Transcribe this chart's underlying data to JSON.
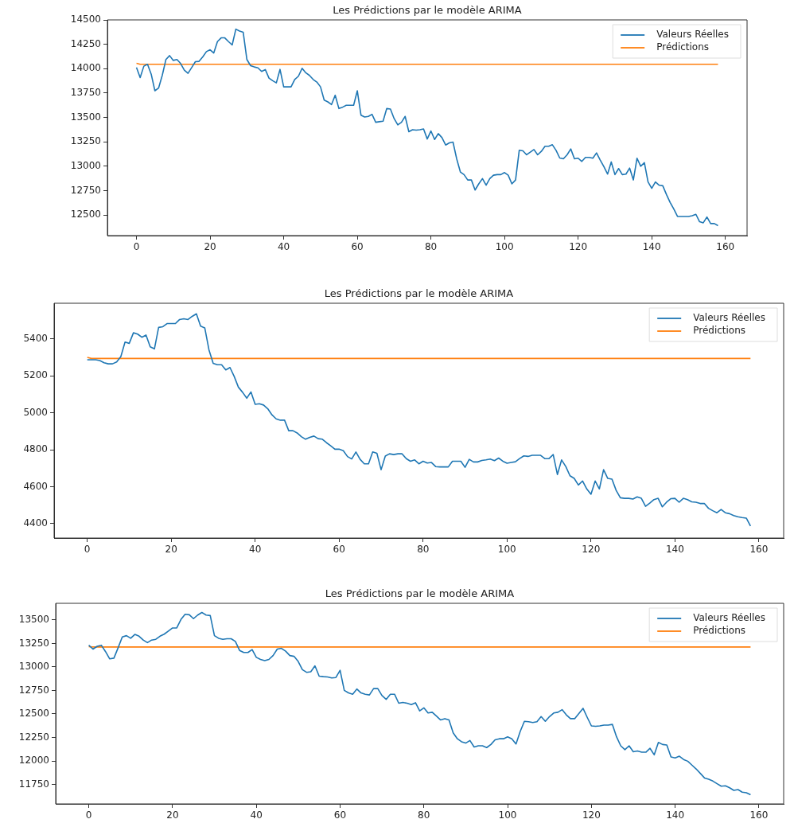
{
  "chart_data": [
    {
      "type": "line",
      "title": "Les Prédictions par le modèle ARIMA",
      "legend": "top right",
      "grid": false,
      "xlim": [
        -7.9,
        165.9
      ],
      "xticks": [
        0,
        20,
        40,
        60,
        80,
        100,
        120,
        140,
        160
      ],
      "ylim": [
        12290,
        14500
      ],
      "yticks": [
        12500,
        12750,
        13000,
        13250,
        13500,
        13750,
        14000,
        14250,
        14500
      ],
      "x": [
        0,
        1,
        2,
        3,
        4,
        5,
        6,
        7,
        8,
        9,
        10,
        11,
        12,
        13,
        14,
        15,
        16,
        17,
        18,
        19,
        20,
        21,
        22,
        23,
        24,
        25,
        26,
        27,
        28,
        29,
        30,
        31,
        32,
        33,
        34,
        35,
        36,
        37,
        38,
        39,
        40,
        41,
        42,
        43,
        44,
        45,
        46,
        47,
        48,
        49,
        50,
        51,
        52,
        53,
        54,
        55,
        56,
        57,
        58,
        59,
        60,
        61,
        62,
        63,
        64,
        65,
        66,
        67,
        68,
        69,
        70,
        71,
        72,
        73,
        74,
        75,
        76,
        77,
        78,
        79,
        80,
        81,
        82,
        83,
        84,
        85,
        86,
        87,
        88,
        89,
        90,
        91,
        92,
        93,
        94,
        95,
        96,
        97,
        98,
        99,
        100,
        101,
        102,
        103,
        104,
        105,
        106,
        107,
        108,
        109,
        110,
        111,
        112,
        113,
        114,
        115,
        116,
        117,
        118,
        119,
        120,
        121,
        122,
        123,
        124,
        125,
        126,
        127,
        128,
        129,
        130,
        131,
        132,
        133,
        134,
        135,
        136,
        137,
        138,
        139,
        140,
        141,
        142,
        143,
        144,
        145,
        146,
        147,
        148,
        149,
        150,
        151,
        152,
        153,
        154,
        155,
        156,
        157,
        158
      ],
      "series": [
        {
          "name": "Valeurs Réelles",
          "color": "#1f77b4",
          "values": [
            14012,
            13909,
            14026,
            14045,
            13944,
            13774,
            13801,
            13931,
            14094,
            14134,
            14085,
            14094,
            14053,
            13985,
            13953,
            14012,
            14072,
            14075,
            14121,
            14175,
            14194,
            14161,
            14278,
            14316,
            14316,
            14278,
            14243,
            14405,
            14386,
            14373,
            14094,
            14031,
            14018,
            14009,
            13972,
            13991,
            13904,
            13877,
            13855,
            13993,
            13814,
            13814,
            13814,
            13890,
            13923,
            14004,
            13958,
            13931,
            13890,
            13863,
            13814,
            13679,
            13660,
            13633,
            13728,
            13592,
            13606,
            13625,
            13625,
            13625,
            13774,
            13524,
            13505,
            13511,
            13533,
            13451,
            13457,
            13462,
            13592,
            13587,
            13489,
            13424,
            13451,
            13511,
            13354,
            13375,
            13370,
            13375,
            13383,
            13280,
            13362,
            13275,
            13335,
            13294,
            13218,
            13240,
            13248,
            13077,
            12942,
            12915,
            12860,
            12860,
            12757,
            12820,
            12874,
            12806,
            12874,
            12909,
            12915,
            12915,
            12936,
            12909,
            12820,
            12860,
            13164,
            13158,
            13118,
            13145,
            13172,
            13118,
            13153,
            13205,
            13205,
            13221,
            13164,
            13085,
            13077,
            13118,
            13178,
            13077,
            13083,
            13050,
            13091,
            13091,
            13083,
            13137,
            13064,
            12996,
            12920,
            13045,
            12915,
            12977,
            12915,
            12920,
            12982,
            12860,
            13083,
            13001,
            13037,
            12839,
            12774,
            12839,
            12806,
            12801,
            12711,
            12630,
            12562,
            12486,
            12486,
            12486,
            12486,
            12494,
            12508,
            12432,
            12421,
            12481,
            12413,
            12413,
            12392
          ]
        },
        {
          "name": "Prédictions",
          "color": "#ff7f0e",
          "x": [
            0,
            1,
            158
          ],
          "values": [
            14055,
            14045,
            14045
          ]
        }
      ]
    },
    {
      "type": "line",
      "title": "Les Prédictions par le modèle ARIMA",
      "legend": "top right",
      "grid": false,
      "xlim": [
        -7.9,
        165.9
      ],
      "xticks": [
        0,
        20,
        40,
        60,
        80,
        100,
        120,
        140,
        160
      ],
      "ylim": [
        4322,
        5593
      ],
      "yticks": [
        4400,
        4600,
        4800,
        5000,
        5200,
        5400
      ],
      "x": [
        0,
        1,
        2,
        3,
        4,
        5,
        6,
        7,
        8,
        9,
        10,
        11,
        12,
        13,
        14,
        15,
        16,
        17,
        18,
        19,
        20,
        21,
        22,
        23,
        24,
        25,
        26,
        27,
        28,
        29,
        30,
        31,
        32,
        33,
        34,
        35,
        36,
        37,
        38,
        39,
        40,
        41,
        42,
        43,
        44,
        45,
        46,
        47,
        48,
        49,
        50,
        51,
        52,
        53,
        54,
        55,
        56,
        57,
        58,
        59,
        60,
        61,
        62,
        63,
        64,
        65,
        66,
        67,
        68,
        69,
        70,
        71,
        72,
        73,
        74,
        75,
        76,
        77,
        78,
        79,
        80,
        81,
        82,
        83,
        84,
        85,
        86,
        87,
        88,
        89,
        90,
        91,
        92,
        93,
        94,
        95,
        96,
        97,
        98,
        99,
        100,
        101,
        102,
        103,
        104,
        105,
        106,
        107,
        108,
        109,
        110,
        111,
        112,
        113,
        114,
        115,
        116,
        117,
        118,
        119,
        120,
        121,
        122,
        123,
        124,
        125,
        126,
        127,
        128,
        129,
        130,
        131,
        132,
        133,
        134,
        135,
        136,
        137,
        138,
        139,
        140,
        141,
        142,
        143,
        144,
        145,
        146,
        147,
        148,
        149,
        150,
        151,
        152,
        153,
        154,
        155,
        156,
        157,
        158
      ],
      "series": [
        {
          "name": "Valeurs Réelles",
          "color": "#1f77b4",
          "values": [
            5287,
            5287,
            5287,
            5283,
            5271,
            5265,
            5265,
            5275,
            5304,
            5383,
            5376,
            5433,
            5426,
            5409,
            5421,
            5357,
            5346,
            5462,
            5466,
            5483,
            5483,
            5483,
            5505,
            5509,
            5505,
            5522,
            5536,
            5469,
            5459,
            5340,
            5268,
            5260,
            5260,
            5232,
            5245,
            5197,
            5139,
            5111,
            5079,
            5113,
            5046,
            5049,
            5042,
            5022,
            4989,
            4967,
            4960,
            4960,
            4903,
            4903,
            4891,
            4871,
            4857,
            4867,
            4874,
            4860,
            4857,
            4838,
            4821,
            4803,
            4803,
            4795,
            4763,
            4750,
            4788,
            4748,
            4724,
            4724,
            4788,
            4781,
            4692,
            4766,
            4778,
            4774,
            4778,
            4778,
            4752,
            4738,
            4745,
            4724,
            4738,
            4728,
            4731,
            4709,
            4707,
            4707,
            4707,
            4738,
            4738,
            4738,
            4705,
            4748,
            4734,
            4734,
            4742,
            4745,
            4750,
            4741,
            4755,
            4738,
            4727,
            4731,
            4735,
            4752,
            4767,
            4764,
            4770,
            4770,
            4770,
            4752,
            4752,
            4774,
            4666,
            4745,
            4709,
            4659,
            4645,
            4609,
            4631,
            4588,
            4559,
            4631,
            4588,
            4692,
            4645,
            4641,
            4580,
            4540,
            4537,
            4537,
            4533,
            4545,
            4537,
            4494,
            4511,
            4530,
            4537,
            4491,
            4516,
            4535,
            4537,
            4516,
            4537,
            4530,
            4518,
            4516,
            4509,
            4509,
            4483,
            4470,
            4459,
            4477,
            4459,
            4454,
            4444,
            4437,
            4433,
            4430,
            4387
          ]
        },
        {
          "name": "Prédictions",
          "color": "#ff7f0e",
          "x": [
            0,
            1,
            158
          ],
          "values": [
            5300,
            5294,
            5294
          ]
        }
      ]
    },
    {
      "type": "line",
      "title": "Les Prédictions par le modèle ARIMA",
      "legend": "top right",
      "grid": false,
      "xlim": [
        -7.9,
        165.9
      ],
      "xticks": [
        0,
        20,
        40,
        60,
        80,
        100,
        120,
        140,
        160
      ],
      "ylim": [
        11543,
        13677
      ],
      "yticks": [
        11750,
        12000,
        12250,
        12500,
        12750,
        13000,
        13250,
        13500
      ],
      "x": [
        0,
        1,
        2,
        3,
        4,
        5,
        6,
        7,
        8,
        9,
        10,
        11,
        12,
        13,
        14,
        15,
        16,
        17,
        18,
        19,
        20,
        21,
        22,
        23,
        24,
        25,
        26,
        27,
        28,
        29,
        30,
        31,
        32,
        33,
        34,
        35,
        36,
        37,
        38,
        39,
        40,
        41,
        42,
        43,
        44,
        45,
        46,
        47,
        48,
        49,
        50,
        51,
        52,
        53,
        54,
        55,
        56,
        57,
        58,
        59,
        60,
        61,
        62,
        63,
        64,
        65,
        66,
        67,
        68,
        69,
        70,
        71,
        72,
        73,
        74,
        75,
        76,
        77,
        78,
        79,
        80,
        81,
        82,
        83,
        84,
        85,
        86,
        87,
        88,
        89,
        90,
        91,
        92,
        93,
        94,
        95,
        96,
        97,
        98,
        99,
        100,
        101,
        102,
        103,
        104,
        105,
        106,
        107,
        108,
        109,
        110,
        111,
        112,
        113,
        114,
        115,
        116,
        117,
        118,
        119,
        120,
        121,
        122,
        123,
        124,
        125,
        126,
        127,
        128,
        129,
        130,
        131,
        132,
        133,
        134,
        135,
        136,
        137,
        138,
        139,
        140,
        141,
        142,
        143,
        144,
        145,
        146,
        147,
        148,
        149,
        150,
        151,
        152,
        153,
        154,
        155,
        156,
        157,
        158
      ],
      "series": [
        {
          "name": "Valeurs Réelles",
          "color": "#1f77b4",
          "values": [
            13231,
            13190,
            13220,
            13231,
            13163,
            13086,
            13094,
            13204,
            13319,
            13333,
            13305,
            13346,
            13327,
            13286,
            13259,
            13286,
            13294,
            13327,
            13349,
            13382,
            13415,
            13415,
            13505,
            13560,
            13555,
            13514,
            13552,
            13580,
            13552,
            13547,
            13333,
            13305,
            13294,
            13300,
            13300,
            13272,
            13176,
            13154,
            13154,
            13185,
            13102,
            13080,
            13067,
            13080,
            13121,
            13190,
            13198,
            13168,
            13121,
            13113,
            13058,
            12971,
            12943,
            12949,
            13012,
            12902,
            12897,
            12894,
            12883,
            12888,
            12965,
            12751,
            12724,
            12710,
            12765,
            12724,
            12710,
            12702,
            12770,
            12770,
            12696,
            12655,
            12710,
            12710,
            12614,
            12622,
            12614,
            12600,
            12619,
            12532,
            12565,
            12510,
            12518,
            12477,
            12436,
            12450,
            12436,
            12299,
            12236,
            12204,
            12190,
            12217,
            12148,
            12161,
            12161,
            12142,
            12175,
            12225,
            12236,
            12236,
            12257,
            12236,
            12181,
            12313,
            12422,
            12417,
            12409,
            12417,
            12472,
            12422,
            12472,
            12510,
            12518,
            12546,
            12491,
            12450,
            12450,
            12505,
            12560,
            12464,
            12373,
            12368,
            12373,
            12381,
            12381,
            12389,
            12257,
            12161,
            12120,
            12161,
            12098,
            12106,
            12093,
            12093,
            12134,
            12065,
            12197,
            12175,
            12170,
            12043,
            12032,
            12051,
            12016,
            11997,
            11956,
            11915,
            11868,
            11819,
            11805,
            11786,
            11758,
            11731,
            11736,
            11714,
            11687,
            11695,
            11668,
            11662,
            11640
          ]
        },
        {
          "name": "Prédictions",
          "color": "#ff7f0e",
          "x": [
            0,
            1,
            158
          ],
          "values": [
            13215,
            13212,
            13212
          ]
        }
      ]
    }
  ]
}
